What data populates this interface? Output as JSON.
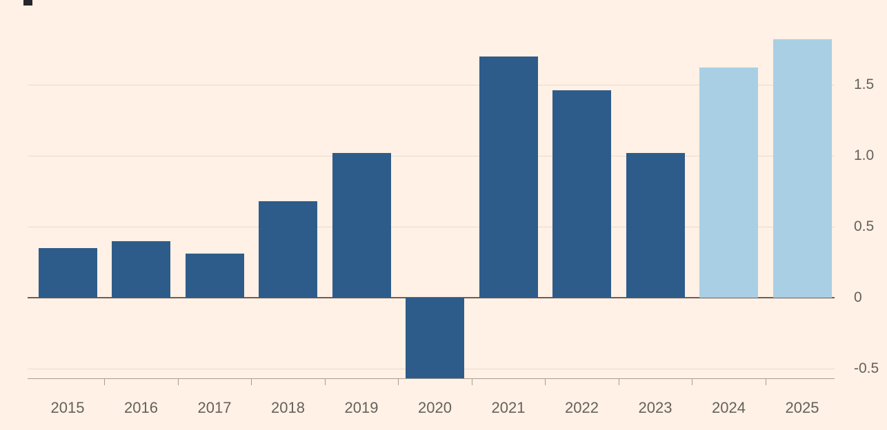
{
  "chart_data": {
    "type": "bar",
    "title": "",
    "categories": [
      "2015",
      "2016",
      "2017",
      "2018",
      "2019",
      "2020",
      "2021",
      "2022",
      "2023",
      "2024",
      "2025"
    ],
    "values": [
      0.35,
      0.4,
      0.31,
      0.68,
      1.02,
      -0.57,
      1.7,
      1.46,
      1.02,
      1.62,
      1.82
    ],
    "bar_styles": [
      "actual",
      "actual",
      "actual",
      "actual",
      "actual",
      "actual",
      "actual",
      "actual",
      "actual",
      "forecast",
      "forecast"
    ],
    "yticks": [
      {
        "value": 1.5,
        "label": "1.5"
      },
      {
        "value": 1.0,
        "label": "1.0"
      },
      {
        "value": 0.5,
        "label": "0.5"
      },
      {
        "value": 0,
        "label": "0"
      },
      {
        "value": -0.5,
        "label": "-0.5"
      }
    ],
    "ylim": [
      -0.57,
      2.1
    ],
    "xlabel": "",
    "ylabel": "",
    "grid": true,
    "legend": "none",
    "yaxis_position": "right",
    "colors": {
      "actual": "#2E5C8A",
      "forecast": "#A9CFE4",
      "background": "#FFF1E5",
      "gridline": "#E8DACA",
      "zero_line": "#66605C",
      "baseline": "#A79D92",
      "tick_label": "#66605C"
    }
  }
}
